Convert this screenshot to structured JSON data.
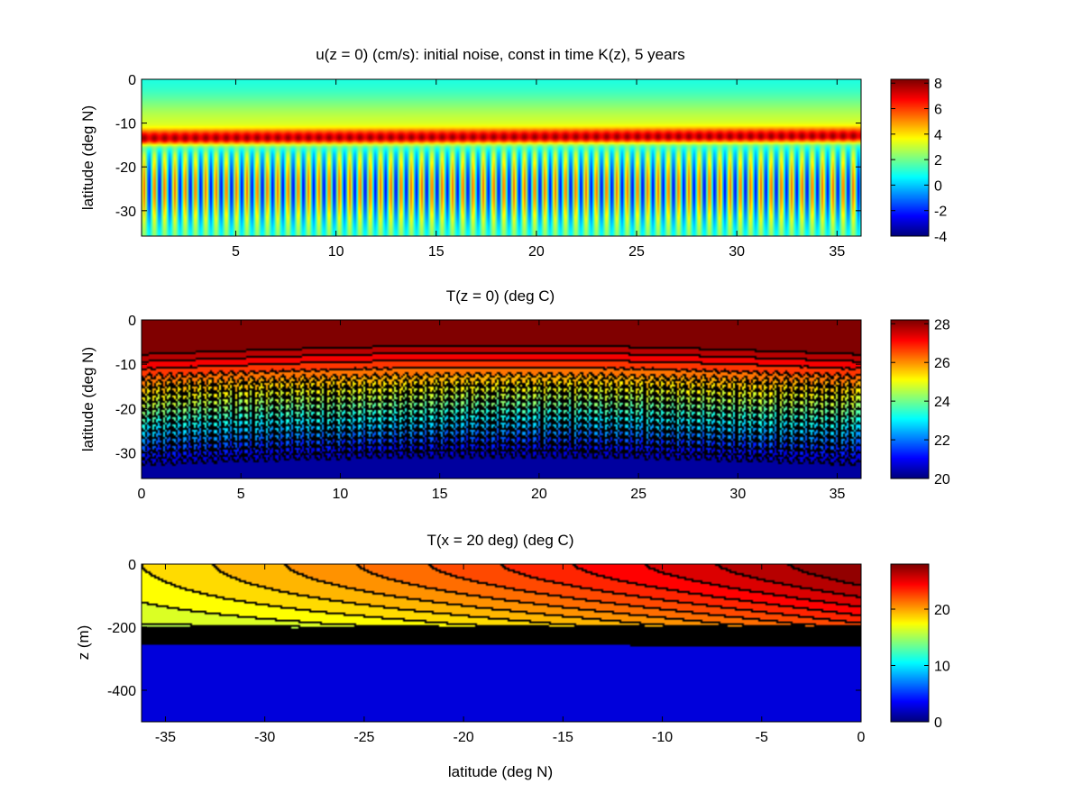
{
  "figure": {
    "background": "#ffffff",
    "colormap": "jet"
  },
  "chart_data": [
    {
      "type": "heatmap",
      "title": "u(z = 0) (cm/s): initial noise, const in time K(z), 5 years",
      "xlabel": "",
      "ylabel": "latitude (deg N)",
      "xlim": [
        0.3,
        36.2
      ],
      "ylim": [
        -35.8,
        0
      ],
      "xticks": [
        5,
        10,
        15,
        20,
        25,
        30,
        35
      ],
      "yticks": [
        0,
        -10,
        -20,
        -30
      ],
      "contour_lines": false,
      "colorbar": {
        "range": [
          -4,
          8.3
        ],
        "ticks": [
          8,
          6,
          4,
          2,
          0,
          -2,
          -4
        ]
      },
      "field": {
        "description_of_pattern": "surface zonal current field with oscillating wave train south of -13",
        "wave_count": 70,
        "jet_latitude_west": -13.5,
        "jet_latitude_east": -13.0,
        "surface_value": 1.0,
        "jet_value": 7.5,
        "southern_mean": 1.5,
        "wave_amplitude": 4.0
      }
    },
    {
      "type": "heatmap",
      "title": "T(z = 0) (deg C)",
      "xlabel": "",
      "ylabel": "latitude (deg N)",
      "xlim": [
        0,
        36.2
      ],
      "ylim": [
        -35.8,
        0
      ],
      "xticks": [
        0,
        5,
        10,
        15,
        20,
        25,
        30,
        35
      ],
      "yticks": [
        0,
        -10,
        -20,
        -30
      ],
      "contour_lines": true,
      "contour_interval": 0.5,
      "colorbar": {
        "range": [
          20,
          28.2
        ],
        "ticks": [
          28,
          26,
          24,
          22,
          20
        ]
      },
      "field": {
        "north_value": 28.0,
        "south_value": 20.0,
        "front_center_west": -21.0,
        "front_center_east": -21.0,
        "front_center_mid": -19.0,
        "wave_count": 70,
        "wave_amplitude_deg": 1.2
      }
    },
    {
      "type": "heatmap",
      "title": "T(x = 20 deg)  (deg C)",
      "xlabel": "latitude (deg N)",
      "ylabel": "z (m)",
      "xlim": [
        -36.2,
        0
      ],
      "ylim": [
        -500,
        0
      ],
      "xticks": [
        -35,
        -30,
        -25,
        -20,
        -15,
        -10,
        -5,
        0
      ],
      "yticks": [
        0,
        -200,
        -400
      ],
      "contour_lines": true,
      "contour_interval": 1,
      "colorbar": {
        "range": [
          0,
          28
        ],
        "ticks": [
          20,
          10,
          0
        ]
      },
      "field": {
        "surface_value_south": 18.0,
        "surface_value_north": 28.0,
        "mixed_layer_value_base": 16.0,
        "thermocline_top_depth": -190,
        "thermocline_bottom_depth": -270,
        "deep_value": 2.0
      }
    }
  ]
}
